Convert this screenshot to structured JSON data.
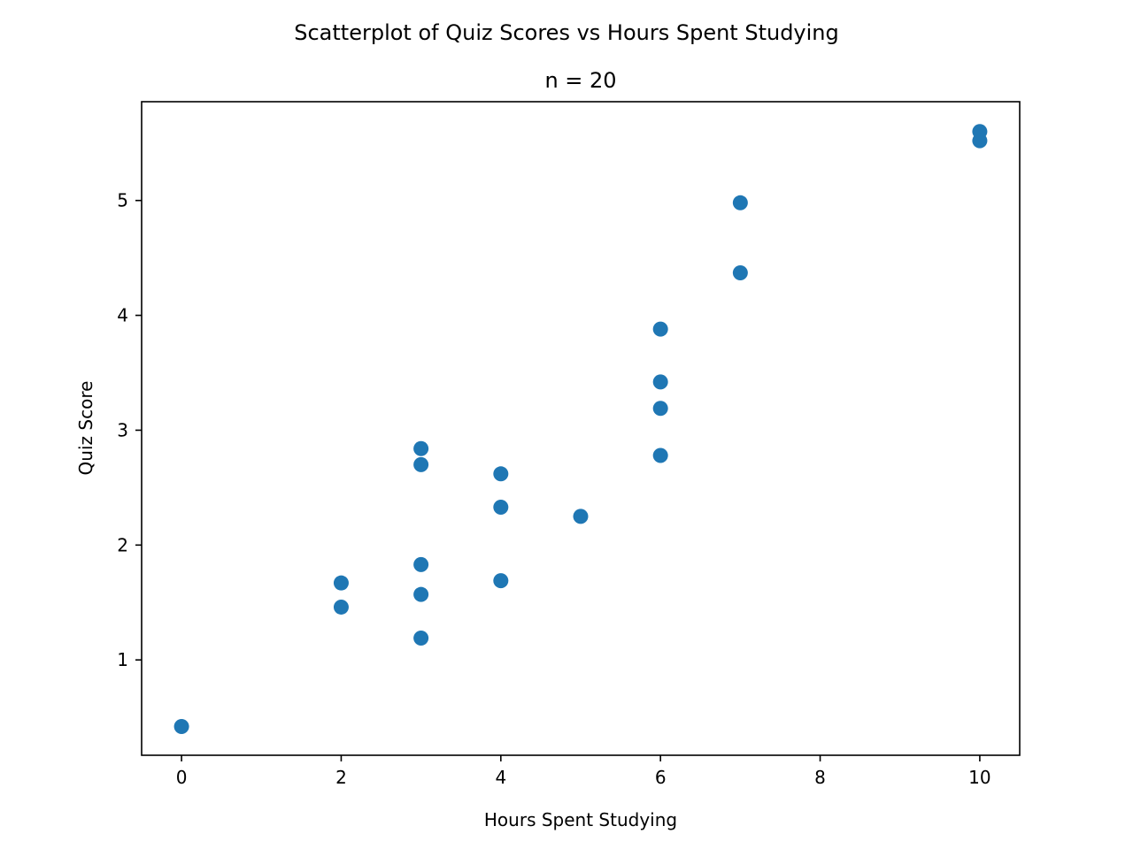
{
  "chart_data": {
    "type": "scatter",
    "suptitle": "Scatterplot of Quiz Scores vs Hours Spent Studying",
    "title": "n = 20",
    "xlabel": "Hours Spent Studying",
    "ylabel": "Quiz Score",
    "xlim": [
      -0.5,
      10.5
    ],
    "ylim": [
      0.17,
      5.86
    ],
    "xticks": [
      0,
      2,
      4,
      6,
      8,
      10
    ],
    "yticks": [
      1,
      2,
      3,
      4,
      5
    ],
    "grid": false,
    "marker_color": "#1f77b4",
    "points": [
      {
        "x": 0,
        "y": 0.42
      },
      {
        "x": 2,
        "y": 1.67
      },
      {
        "x": 2,
        "y": 1.46
      },
      {
        "x": 3,
        "y": 2.84
      },
      {
        "x": 3,
        "y": 2.7
      },
      {
        "x": 3,
        "y": 1.83
      },
      {
        "x": 3,
        "y": 1.57
      },
      {
        "x": 3,
        "y": 1.19
      },
      {
        "x": 4,
        "y": 2.62
      },
      {
        "x": 4,
        "y": 2.33
      },
      {
        "x": 4,
        "y": 1.69
      },
      {
        "x": 5,
        "y": 2.25
      },
      {
        "x": 6,
        "y": 3.88
      },
      {
        "x": 6,
        "y": 3.42
      },
      {
        "x": 6,
        "y": 3.19
      },
      {
        "x": 6,
        "y": 2.78
      },
      {
        "x": 7,
        "y": 4.98
      },
      {
        "x": 7,
        "y": 4.37
      },
      {
        "x": 10,
        "y": 5.6
      },
      {
        "x": 10,
        "y": 5.52
      }
    ]
  }
}
